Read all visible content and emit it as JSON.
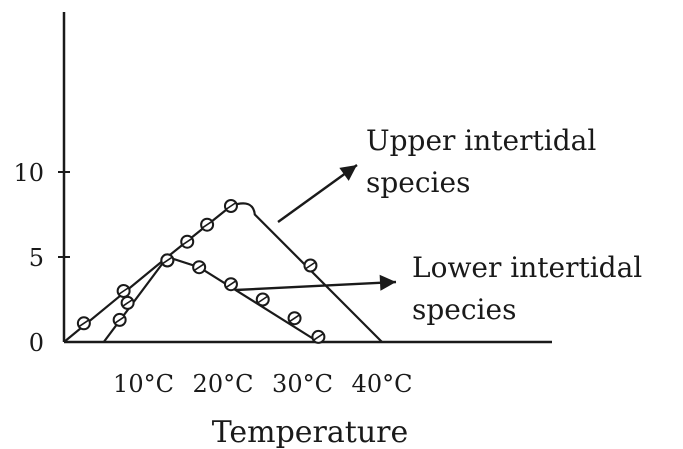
{
  "chart_data": {
    "type": "line",
    "title": "",
    "xlabel": "Temperature",
    "ylabel": "",
    "xlim": [
      0,
      48
    ],
    "ylim": [
      0,
      19
    ],
    "x_ticks": [
      {
        "value": 10,
        "label": "10°C"
      },
      {
        "value": 20,
        "label": "20°C"
      },
      {
        "value": 30,
        "label": "30°C"
      },
      {
        "value": 40,
        "label": "40°C"
      }
    ],
    "y_ticks": [
      {
        "value": 0,
        "label": "0"
      },
      {
        "value": 5,
        "label": "5"
      },
      {
        "value": 10,
        "label": "10"
      }
    ],
    "grid": false,
    "legend": "none",
    "series": [
      {
        "name": "Upper intertidal species",
        "curve": [
          [
            5,
            0
          ],
          [
            13,
            5
          ],
          [
            21,
            8
          ],
          [
            24,
            7.5
          ],
          [
            40,
            0
          ]
        ],
        "points": [
          [
            7,
            1.3
          ],
          [
            13,
            4.8
          ],
          [
            15.5,
            5.9
          ],
          [
            18,
            6.9
          ],
          [
            21,
            8
          ],
          [
            31,
            4.5
          ]
        ]
      },
      {
        "name": "Lower intertidal species",
        "curve": [
          [
            0,
            0
          ],
          [
            13,
            5
          ],
          [
            17,
            4.4
          ],
          [
            32,
            0
          ]
        ],
        "points": [
          [
            2.5,
            1.1
          ],
          [
            7.5,
            3
          ],
          [
            8,
            2.3
          ],
          [
            13,
            4.8
          ],
          [
            17,
            4.4
          ],
          [
            21,
            3.4
          ],
          [
            25,
            2.5
          ],
          [
            29,
            1.4
          ],
          [
            32,
            0.3
          ]
        ]
      }
    ],
    "annotations": [
      {
        "text": [
          "Upper intertidal",
          "species"
        ],
        "target_series": 0
      },
      {
        "text": [
          "Lower intertidal",
          "species"
        ],
        "target_series": 1
      }
    ]
  }
}
